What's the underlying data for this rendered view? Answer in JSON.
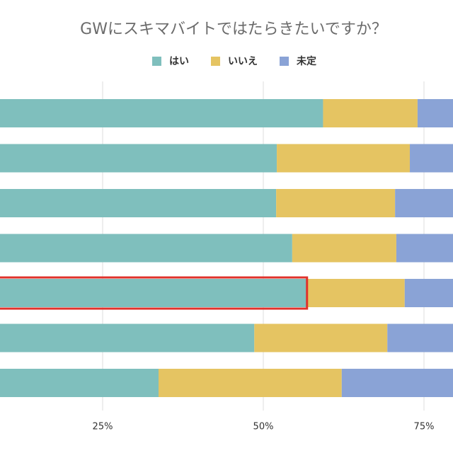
{
  "chart_data": {
    "type": "stacked_bar_horizontal",
    "title": "GWにスキマバイトではたらきたいですか？",
    "categories": [
      null,
      null,
      null,
      null,
      null,
      null,
      null
    ],
    "series": [
      {
        "name": "はい",
        "color": "#7fbfbd",
        "values": [
          59.3,
          52.1,
          52.0,
          54.5,
          56.8,
          48.6,
          33.7
        ]
      },
      {
        "name": "いいえ",
        "color": "#e5c462",
        "values": [
          14.7,
          20.7,
          18.5,
          16.2,
          15.2,
          20.7,
          28.5
        ]
      },
      {
        "name": "未定",
        "color": "#8aa3d6",
        "values": [
          26.0,
          27.2,
          29.5,
          29.3,
          28.0,
          30.7,
          37.8
        ]
      }
    ],
    "xlim": [
      0,
      100
    ],
    "xticks": [
      {
        "value": 25,
        "label": "25%"
      },
      {
        "value": 50,
        "label": "50%"
      },
      {
        "value": 75,
        "label": "75%"
      }
    ],
    "grid": true
  }
}
